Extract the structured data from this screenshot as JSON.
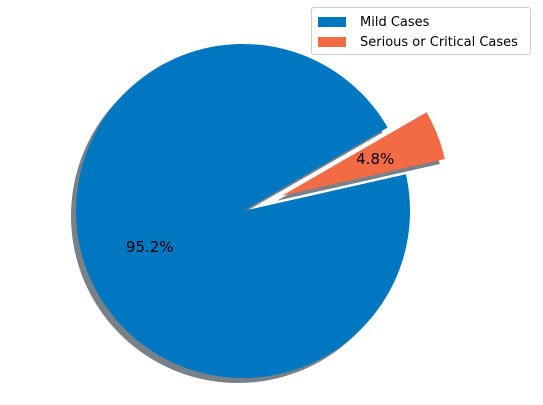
{
  "chart_data": {
    "type": "pie",
    "title": "",
    "labels": [
      "Mild Cases",
      "Serious or Critical Cases"
    ],
    "values": [
      95.2,
      4.8
    ],
    "value_labels": [
      "95.2%",
      "4.8%"
    ],
    "colors": [
      "#0077C0",
      "#F26B45"
    ],
    "explode": [
      0,
      0.25
    ],
    "shadow": true,
    "legend_position": "top-right"
  }
}
